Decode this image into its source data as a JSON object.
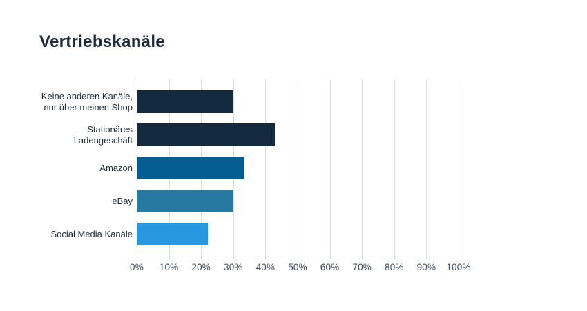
{
  "title": "Vertriebskanäle",
  "chart_data": {
    "type": "bar",
    "orientation": "horizontal",
    "title": "Vertriebskanäle",
    "categories": [
      "Keine anderen Kanäle, nur über meinen Shop",
      "Stationäres Ladengeschäft",
      "Amazon",
      "eBay",
      "Social Media Kanäle"
    ],
    "category_lines": [
      [
        "Keine anderen Kanäle,",
        "nur über meinen Shop"
      ],
      [
        "Stationäres",
        "Ladengeschäft"
      ],
      [
        "Amazon"
      ],
      [
        "eBay"
      ],
      [
        "Social Media Kanäle"
      ]
    ],
    "values": [
      30,
      43,
      33.5,
      30,
      22
    ],
    "unit": "%",
    "bar_colors": [
      "#142a3e",
      "#142a3e",
      "#045c90",
      "#2779a1",
      "#2997e0"
    ],
    "xlim": [
      0,
      100
    ],
    "tick_step": 10,
    "x_ticks": [
      "0%",
      "10%",
      "20%",
      "30%",
      "40%",
      "50%",
      "60%",
      "70%",
      "80%",
      "90%",
      "100%"
    ],
    "grid": "vertical",
    "legend": "none"
  },
  "style": {
    "background": "#ffffff",
    "title_color": "#1d2b3c",
    "label_color": "#22313f",
    "tick_label_color": "#3d4e61",
    "gridline_color": "#dcdfe2",
    "axis_color": "#c7ccd1"
  }
}
